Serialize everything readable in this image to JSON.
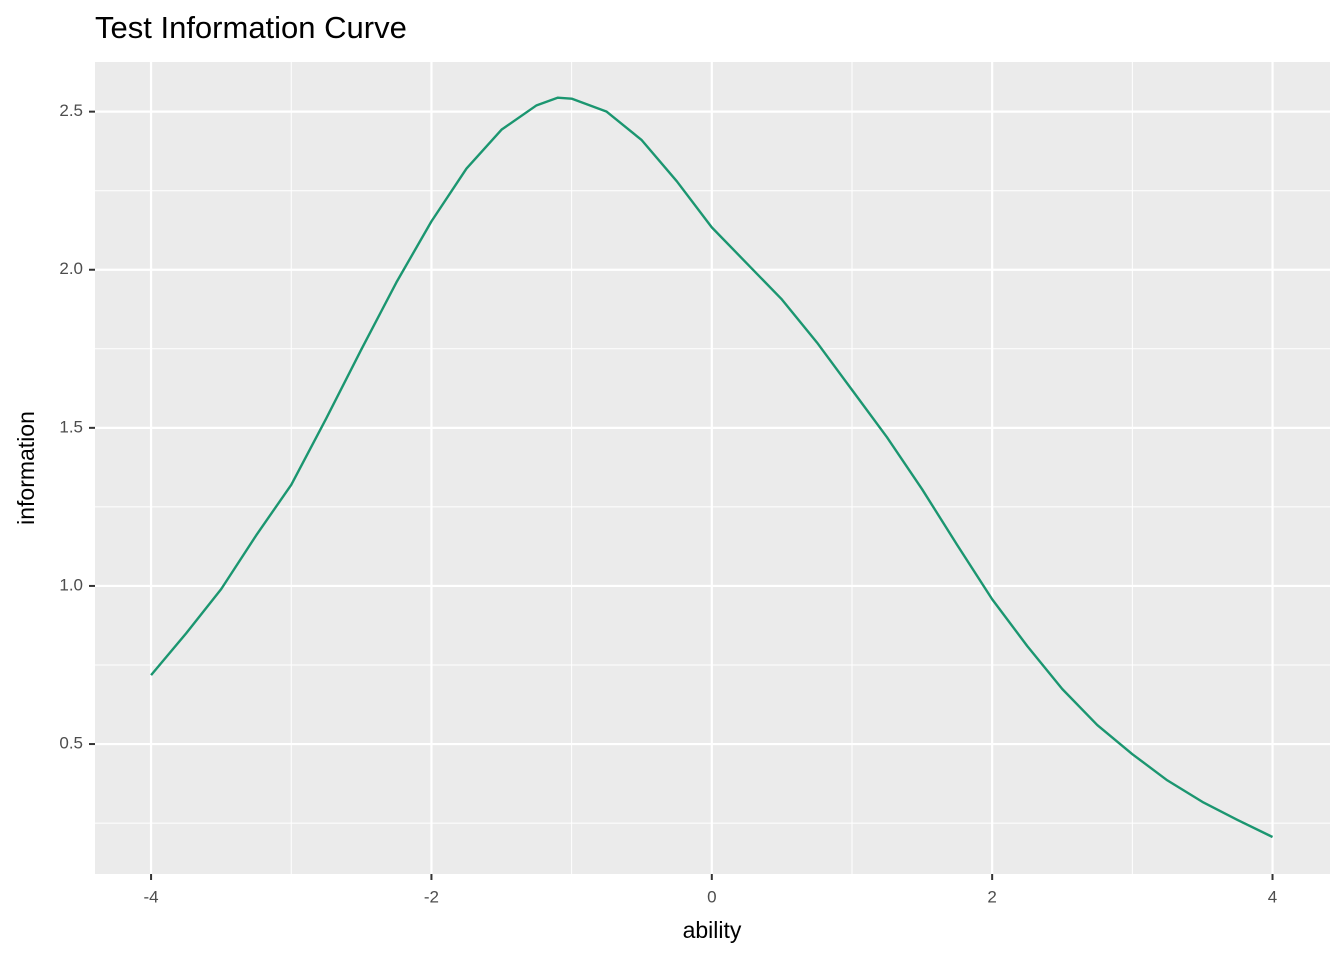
{
  "chart_data": {
    "type": "line",
    "title": "Test Information Curve",
    "x_label": "ability",
    "y_label": "information",
    "x": [
      -4,
      -3.75,
      -3.5,
      -3.25,
      -3,
      -2.75,
      -2.5,
      -2.25,
      -2,
      -1.75,
      -1.5,
      -1.25,
      -1.1,
      -1,
      -0.75,
      -0.5,
      -0.25,
      0,
      0.25,
      0.5,
      0.75,
      1,
      1.25,
      1.5,
      1.75,
      2,
      2.25,
      2.5,
      2.75,
      3,
      3.25,
      3.5,
      3.75,
      4
    ],
    "series": [
      {
        "color": "#1b9670",
        "values": [
          0.718,
          0.85,
          0.99,
          1.16,
          1.32,
          1.53,
          1.748,
          1.96,
          2.153,
          2.32,
          2.443,
          2.52,
          2.544,
          2.541,
          2.5,
          2.41,
          2.28,
          2.134,
          2.02,
          1.906,
          1.77,
          1.62,
          1.47,
          1.306,
          1.13,
          0.958,
          0.81,
          0.674,
          0.56,
          0.468,
          0.385,
          0.317,
          0.26,
          0.206
        ]
      }
    ],
    "xlim": [
      -4.4,
      4.41
    ],
    "ylim": [
      0.089,
      2.657
    ],
    "xticks": [
      -4,
      -2,
      0,
      2,
      4
    ],
    "yticks": [
      0.5,
      {
        "value": 1,
        "label": "1.0"
      },
      1.5,
      {
        "value": 2,
        "label": "2.0"
      },
      2.5
    ],
    "x_minor_ticks": [
      -3,
      -1,
      1,
      3
    ],
    "y_minor_ticks": [
      0.25,
      0.75,
      1.25,
      1.75,
      2.25
    ],
    "grid": true
  }
}
